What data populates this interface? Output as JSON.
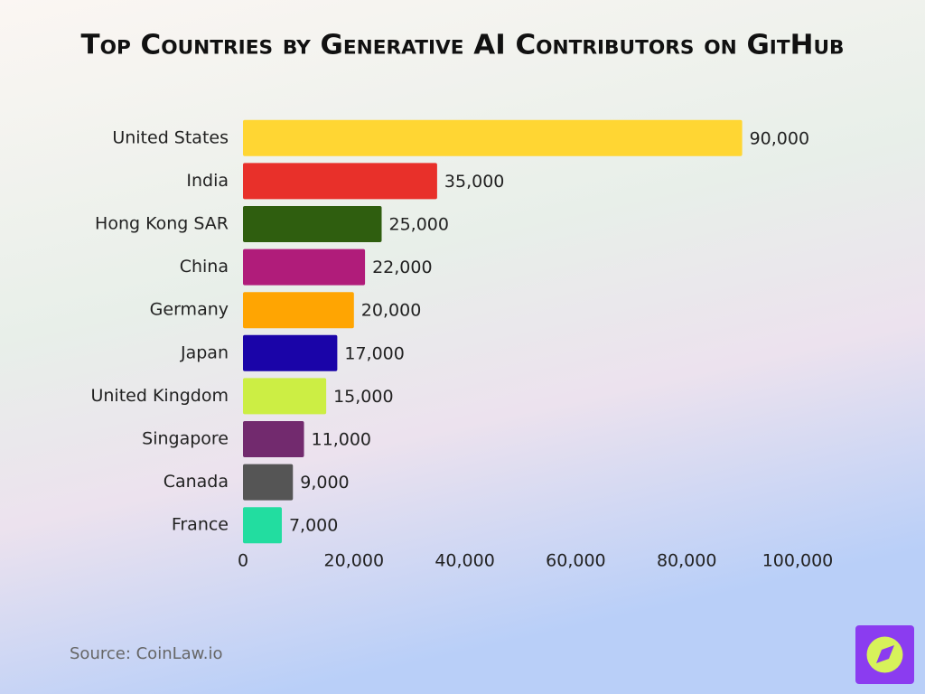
{
  "chart_data": {
    "type": "bar",
    "orientation": "horizontal",
    "title": "Top Countries by Generative AI Contributors on GitHub",
    "categories": [
      "United States",
      "India",
      "Hong Kong SAR",
      "China",
      "Germany",
      "Japan",
      "United Kingdom",
      "Singapore",
      "Canada",
      "France"
    ],
    "values": [
      90000,
      35000,
      25000,
      22000,
      20000,
      17000,
      15000,
      11000,
      9000,
      7000
    ],
    "value_labels": [
      "90,000",
      "35,000",
      "25,000",
      "22,000",
      "20,000",
      "17,000",
      "15,000",
      "11,000",
      "9,000",
      "7,000"
    ],
    "colors": [
      "#ffd633",
      "#e8302a",
      "#2f5e0f",
      "#b01c7a",
      "#ffa502",
      "#1a04a8",
      "#ccee44",
      "#722a6e",
      "#555555",
      "#22dda0"
    ],
    "xlim": [
      0,
      100000
    ],
    "xticks": [
      0,
      {
        "value": 20000,
        "label": "20,000"
      },
      {
        "value": 40000,
        "label": "40,000"
      },
      {
        "value": 60000,
        "label": "60,000"
      },
      {
        "value": 80000,
        "label": "80,000"
      },
      {
        "value": 100000,
        "label": "100,000"
      }
    ],
    "grid": false,
    "source": "Source: CoinLaw.io"
  }
}
